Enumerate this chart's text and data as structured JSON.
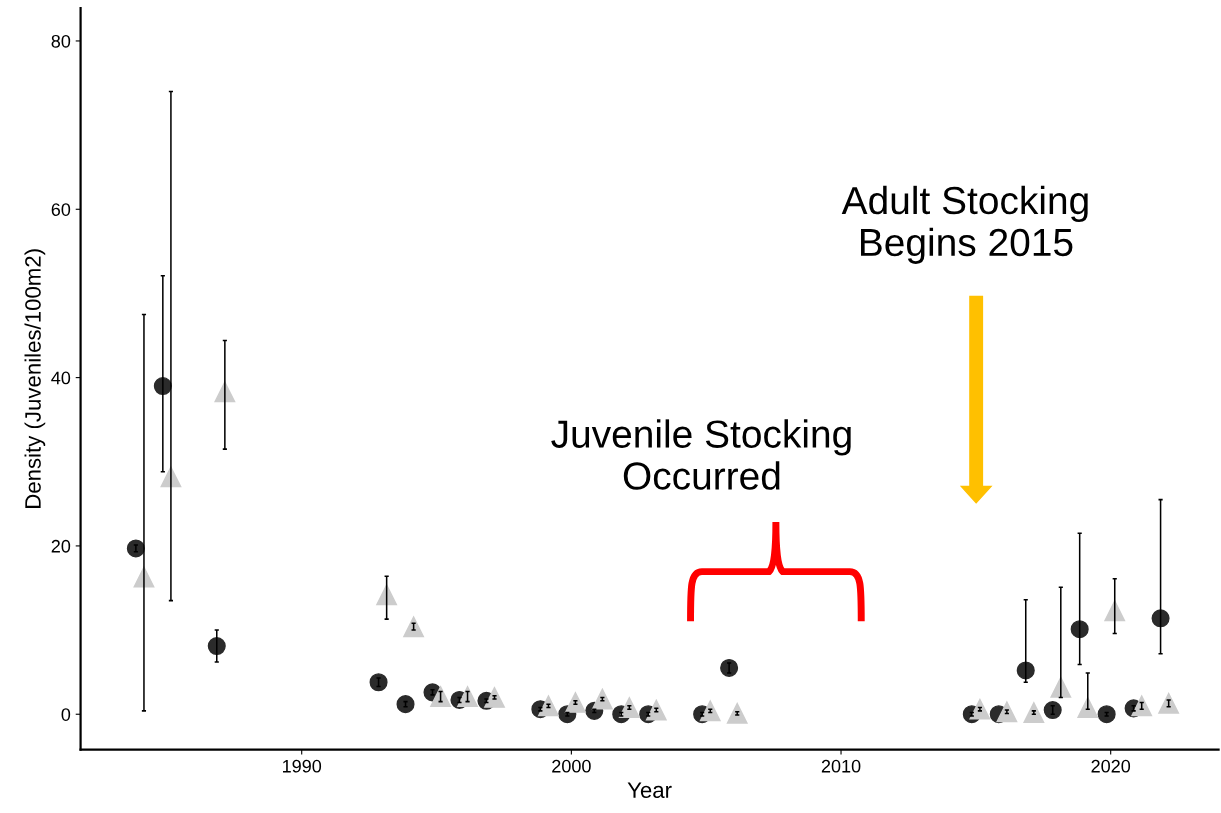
{
  "chart_data": {
    "type": "scatter",
    "xlabel": "Year",
    "ylabel": "Density (Juveniles/100m2)",
    "xlim": [
      1981.8,
      2024.0
    ],
    "ylim": [
      -4.2,
      83.9
    ],
    "xticks": [
      1990,
      2000,
      2010,
      2020
    ],
    "yticks": [
      0,
      20,
      40,
      60,
      80
    ],
    "grid": false,
    "legend": false,
    "series": [
      {
        "color": "#2b2b2b",
        "marker": "circle",
        "x": [
          1983.85,
          1984.85,
          1986.85,
          1992.85,
          1993.85,
          1994.85,
          1995.85,
          1996.85,
          1998.85,
          1999.85,
          2000.85,
          2001.85,
          2002.85,
          2004.85,
          2005.85,
          2014.85,
          2015.85,
          2016.85,
          2017.85,
          2018.85,
          2019.85,
          2020.85,
          2021.85
        ],
        "values": [
          19.7,
          39.0,
          8.1,
          3.8,
          1.2,
          2.6,
          1.7,
          1.6,
          0.6,
          0,
          0.4,
          0,
          0,
          0,
          5.5,
          0,
          0,
          5.2,
          0.5,
          10.1,
          0,
          0.7,
          11.4
        ],
        "errors": [
          0.4,
          [
            28.8,
            52.1
          ],
          [
            6.2,
            10.0
          ],
          0.5,
          0.3,
          0.3,
          0.3,
          0.2,
          0.2,
          0.2,
          0.2,
          0.2,
          0.2,
          0.2,
          0.6,
          0.2,
          null,
          [
            3.8,
            13.6
          ],
          0.5,
          [
            5.9,
            21.5
          ],
          0.2,
          0.3,
          [
            7.2,
            25.5
          ]
        ]
      },
      {
        "color": "#cccccc",
        "marker": "triangle",
        "x": [
          1984.15,
          1985.15,
          1987.15,
          1993.15,
          1994.15,
          1995.15,
          1996.15,
          1997.15,
          1999.15,
          2000.15,
          2001.15,
          2002.15,
          2003.15,
          2005.15,
          2006.15,
          2015.15,
          2016.15,
          2017.15,
          2018.15,
          2019.15,
          2020.15,
          2021.15,
          2022.15
        ],
        "values": [
          16.3,
          28.2,
          38.3,
          14.2,
          10.4,
          2.1,
          2.1,
          2.0,
          1.0,
          1.4,
          1.8,
          0.8,
          0.5,
          0.4,
          0.1,
          0.6,
          0.3,
          0.2,
          3.2,
          0.8,
          12.3,
          1.0,
          1.3
        ],
        "errors": [
          [
            0.4,
            47.5
          ],
          [
            13.5,
            74.0
          ],
          [
            31.5,
            44.4
          ],
          [
            11.3,
            16.4
          ],
          0.4,
          0.6,
          0.6,
          0.2,
          0.2,
          0.2,
          0.2,
          0.2,
          0.2,
          0.2,
          0.2,
          0.2,
          0.2,
          0.2,
          [
            2.0,
            15.1
          ],
          [
            0.6,
            4.9
          ],
          [
            9.6,
            16.1
          ],
          0.4,
          0.4
        ]
      }
    ],
    "annotations": [
      "Juvenile Stocking\nOccurred",
      "Adult Stocking\nBegins 2015"
    ]
  }
}
